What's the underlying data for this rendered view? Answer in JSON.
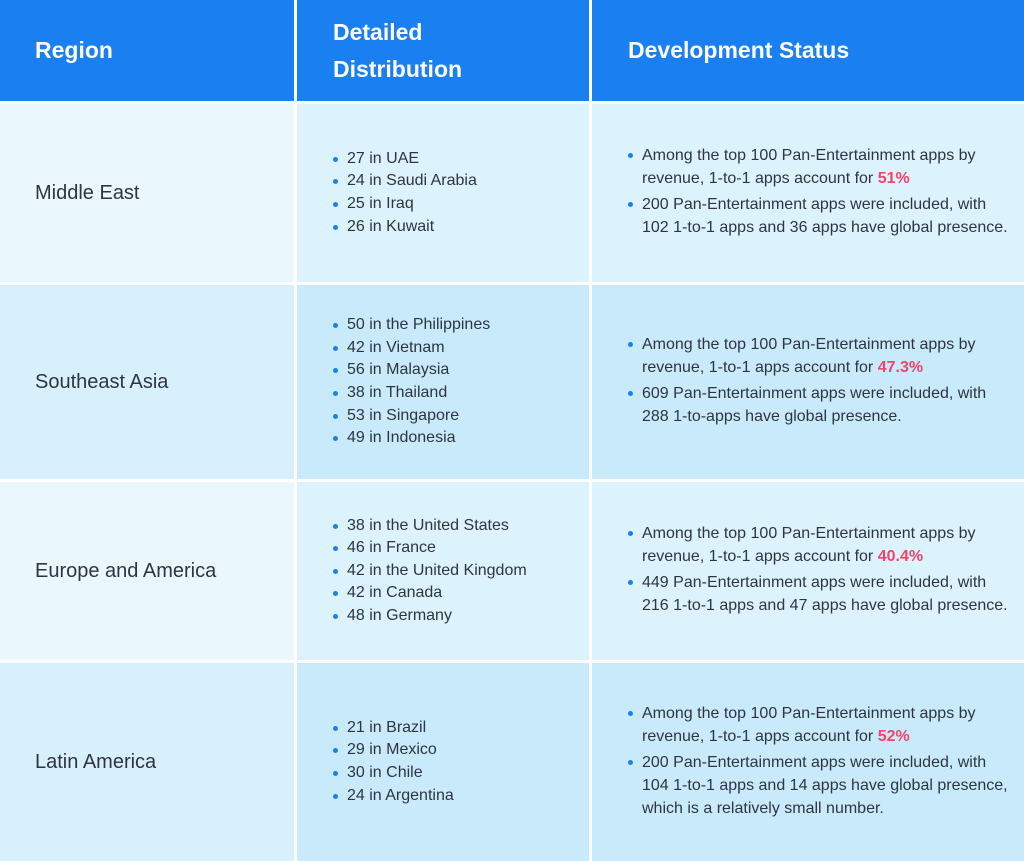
{
  "header": {
    "region": "Region",
    "distribution_line1": "Detailed",
    "distribution_line2": "Distribution",
    "status": "Development Status"
  },
  "rows": [
    {
      "region": "Middle East",
      "distribution": [
        "27 in UAE",
        "24 in Saudi Arabia",
        "25 in Iraq",
        "26 in Kuwait"
      ],
      "status_1_text": "Among the top 100 Pan-Entertainment apps by revenue, 1-to-1 apps account for ",
      "status_1_highlight": "51%",
      "status_2": "200 Pan-Entertainment apps were included, with 102 1-to-1 apps and 36 apps have global presence."
    },
    {
      "region": "Southeast Asia",
      "distribution": [
        "50 in the Philippines",
        "42 in Vietnam",
        "56 in Malaysia",
        "38 in Thailand",
        "53 in Singapore",
        "49 in Indonesia"
      ],
      "status_1_text": "Among the top 100 Pan-Entertainment apps by revenue, 1-to-1 apps account for ",
      "status_1_highlight": "47.3%",
      "status_2": "609 Pan-Entertainment apps were included, with 288 1-to-apps have global presence."
    },
    {
      "region": "Europe and America",
      "distribution": [
        "38 in the United States",
        "46 in France",
        "42 in the United Kingdom",
        "42 in Canada",
        "48 in Germany"
      ],
      "status_1_text": "Among the top 100 Pan-Entertainment apps by revenue, 1-to-1 apps account for ",
      "status_1_highlight": "40.4%",
      "status_2": "449 Pan-Entertainment apps were included, with 216 1-to-1 apps and 47 apps have global presence."
    },
    {
      "region": "Latin America",
      "distribution": [
        "21 in Brazil",
        "29 in Mexico",
        "30 in Chile",
        "24 in Argentina"
      ],
      "status_1_text": "Among the top 100 Pan-Entertainment apps by revenue, 1-to-1 apps account for ",
      "status_1_highlight": "52%",
      "status_2": "200 Pan-Entertainment apps were included, with 104 1-to-1 apps and 14 apps have global presence, which is a relatively small number."
    }
  ],
  "colors": {
    "header_bg": "#1a7ff0",
    "highlight": "#f0446c",
    "bullet": "#1a7ff0"
  }
}
